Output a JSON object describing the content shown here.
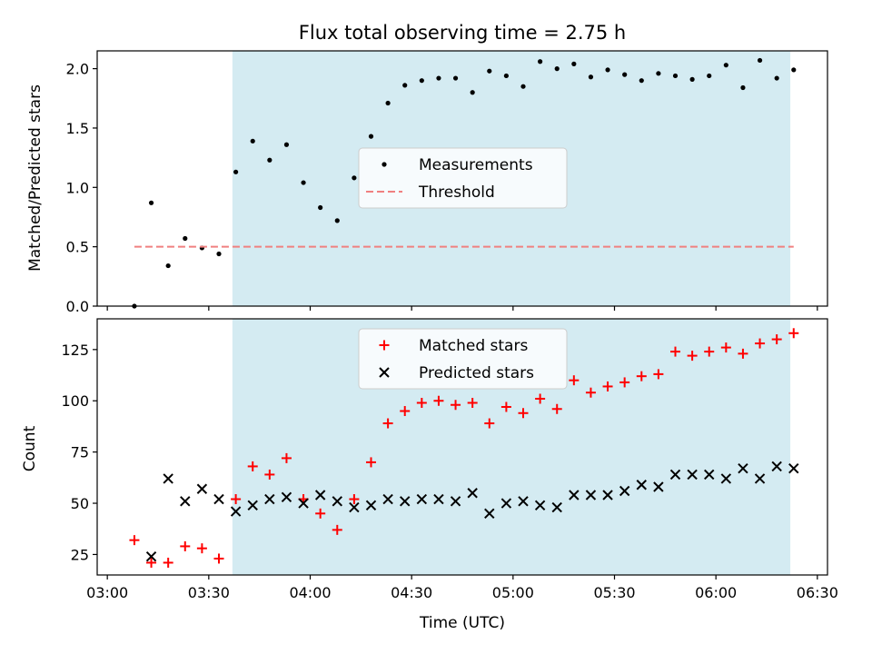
{
  "figure": {
    "title": "Flux total observing time = 2.75 h",
    "xlabel": "Time (UTC)",
    "x_ticks": [
      "03:00",
      "03:30",
      "04:00",
      "04:30",
      "05:00",
      "05:30",
      "06:00",
      "06:30"
    ],
    "x_tick_minutes": [
      180,
      210,
      240,
      270,
      300,
      330,
      360,
      390
    ],
    "xlim_minutes": [
      177,
      393
    ],
    "shaded_span_minutes": [
      217,
      382
    ],
    "shade_color": "#add8e6",
    "times_minutes": [
      188,
      193,
      198,
      203,
      208,
      213,
      218,
      223,
      228,
      233,
      238,
      243,
      248,
      253,
      258,
      263,
      268,
      273,
      278,
      283,
      288,
      293,
      298,
      303,
      308,
      313,
      318,
      323,
      328,
      333,
      338,
      343,
      348,
      353,
      358,
      363,
      368,
      373,
      378,
      383
    ]
  },
  "chart_data": [
    {
      "type": "scatter",
      "title": "Flux total observing time = 2.75 h",
      "ylabel": "Matched/Predicted stars",
      "ylim": [
        0,
        2.15
      ],
      "yticks": [
        0.0,
        0.5,
        1.0,
        1.5,
        2.0
      ],
      "ytick_labels": [
        "0.0",
        "0.5",
        "1.0",
        "1.5",
        "2.0"
      ],
      "grid": false,
      "legend": "center",
      "series": [
        {
          "name": "Measurements",
          "marker": "dot",
          "color": "#000000",
          "values": [
            0.0,
            0.87,
            0.34,
            0.57,
            0.49,
            0.44,
            1.13,
            1.39,
            1.23,
            1.36,
            1.04,
            0.83,
            0.72,
            1.08,
            1.43,
            1.71,
            1.86,
            1.9,
            1.92,
            1.92,
            1.8,
            1.98,
            1.94,
            1.85,
            2.06,
            2.0,
            2.04,
            1.93,
            1.99,
            1.95,
            1.9,
            1.96,
            1.94,
            1.91,
            1.94,
            2.03,
            1.84,
            2.07,
            1.92,
            1.99
          ]
        },
        {
          "name": "Threshold",
          "marker": "dashed-line",
          "color": "#f08080",
          "x_range_minutes": [
            188,
            383
          ],
          "value": 0.5
        }
      ]
    },
    {
      "type": "scatter",
      "ylabel": "Count",
      "ylim": [
        15,
        140
      ],
      "yticks": [
        25,
        50,
        75,
        100,
        125
      ],
      "ytick_labels": [
        "25",
        "50",
        "75",
        "100",
        "125"
      ],
      "grid": false,
      "legend": "top-center",
      "series": [
        {
          "name": "Matched stars",
          "marker": "plus",
          "color": "#ff0000",
          "values": [
            32,
            21,
            21,
            29,
            28,
            23,
            52,
            68,
            64,
            72,
            52,
            45,
            37,
            52,
            70,
            89,
            95,
            99,
            100,
            98,
            99,
            89,
            97,
            94,
            101,
            96,
            110,
            104,
            107,
            109,
            112,
            113,
            124,
            122,
            124,
            126,
            123,
            128,
            130,
            133
          ]
        },
        {
          "name": "Predicted stars",
          "marker": "x",
          "color": "#000000",
          "values": [
            null,
            24,
            62,
            51,
            57,
            52,
            46,
            49,
            52,
            53,
            50,
            54,
            51,
            48,
            49,
            52,
            51,
            52,
            52,
            51,
            55,
            45,
            50,
            51,
            49,
            48,
            54,
            54,
            54,
            56,
            59,
            58,
            64,
            64,
            64,
            62,
            67,
            62,
            68,
            67
          ]
        }
      ]
    }
  ]
}
